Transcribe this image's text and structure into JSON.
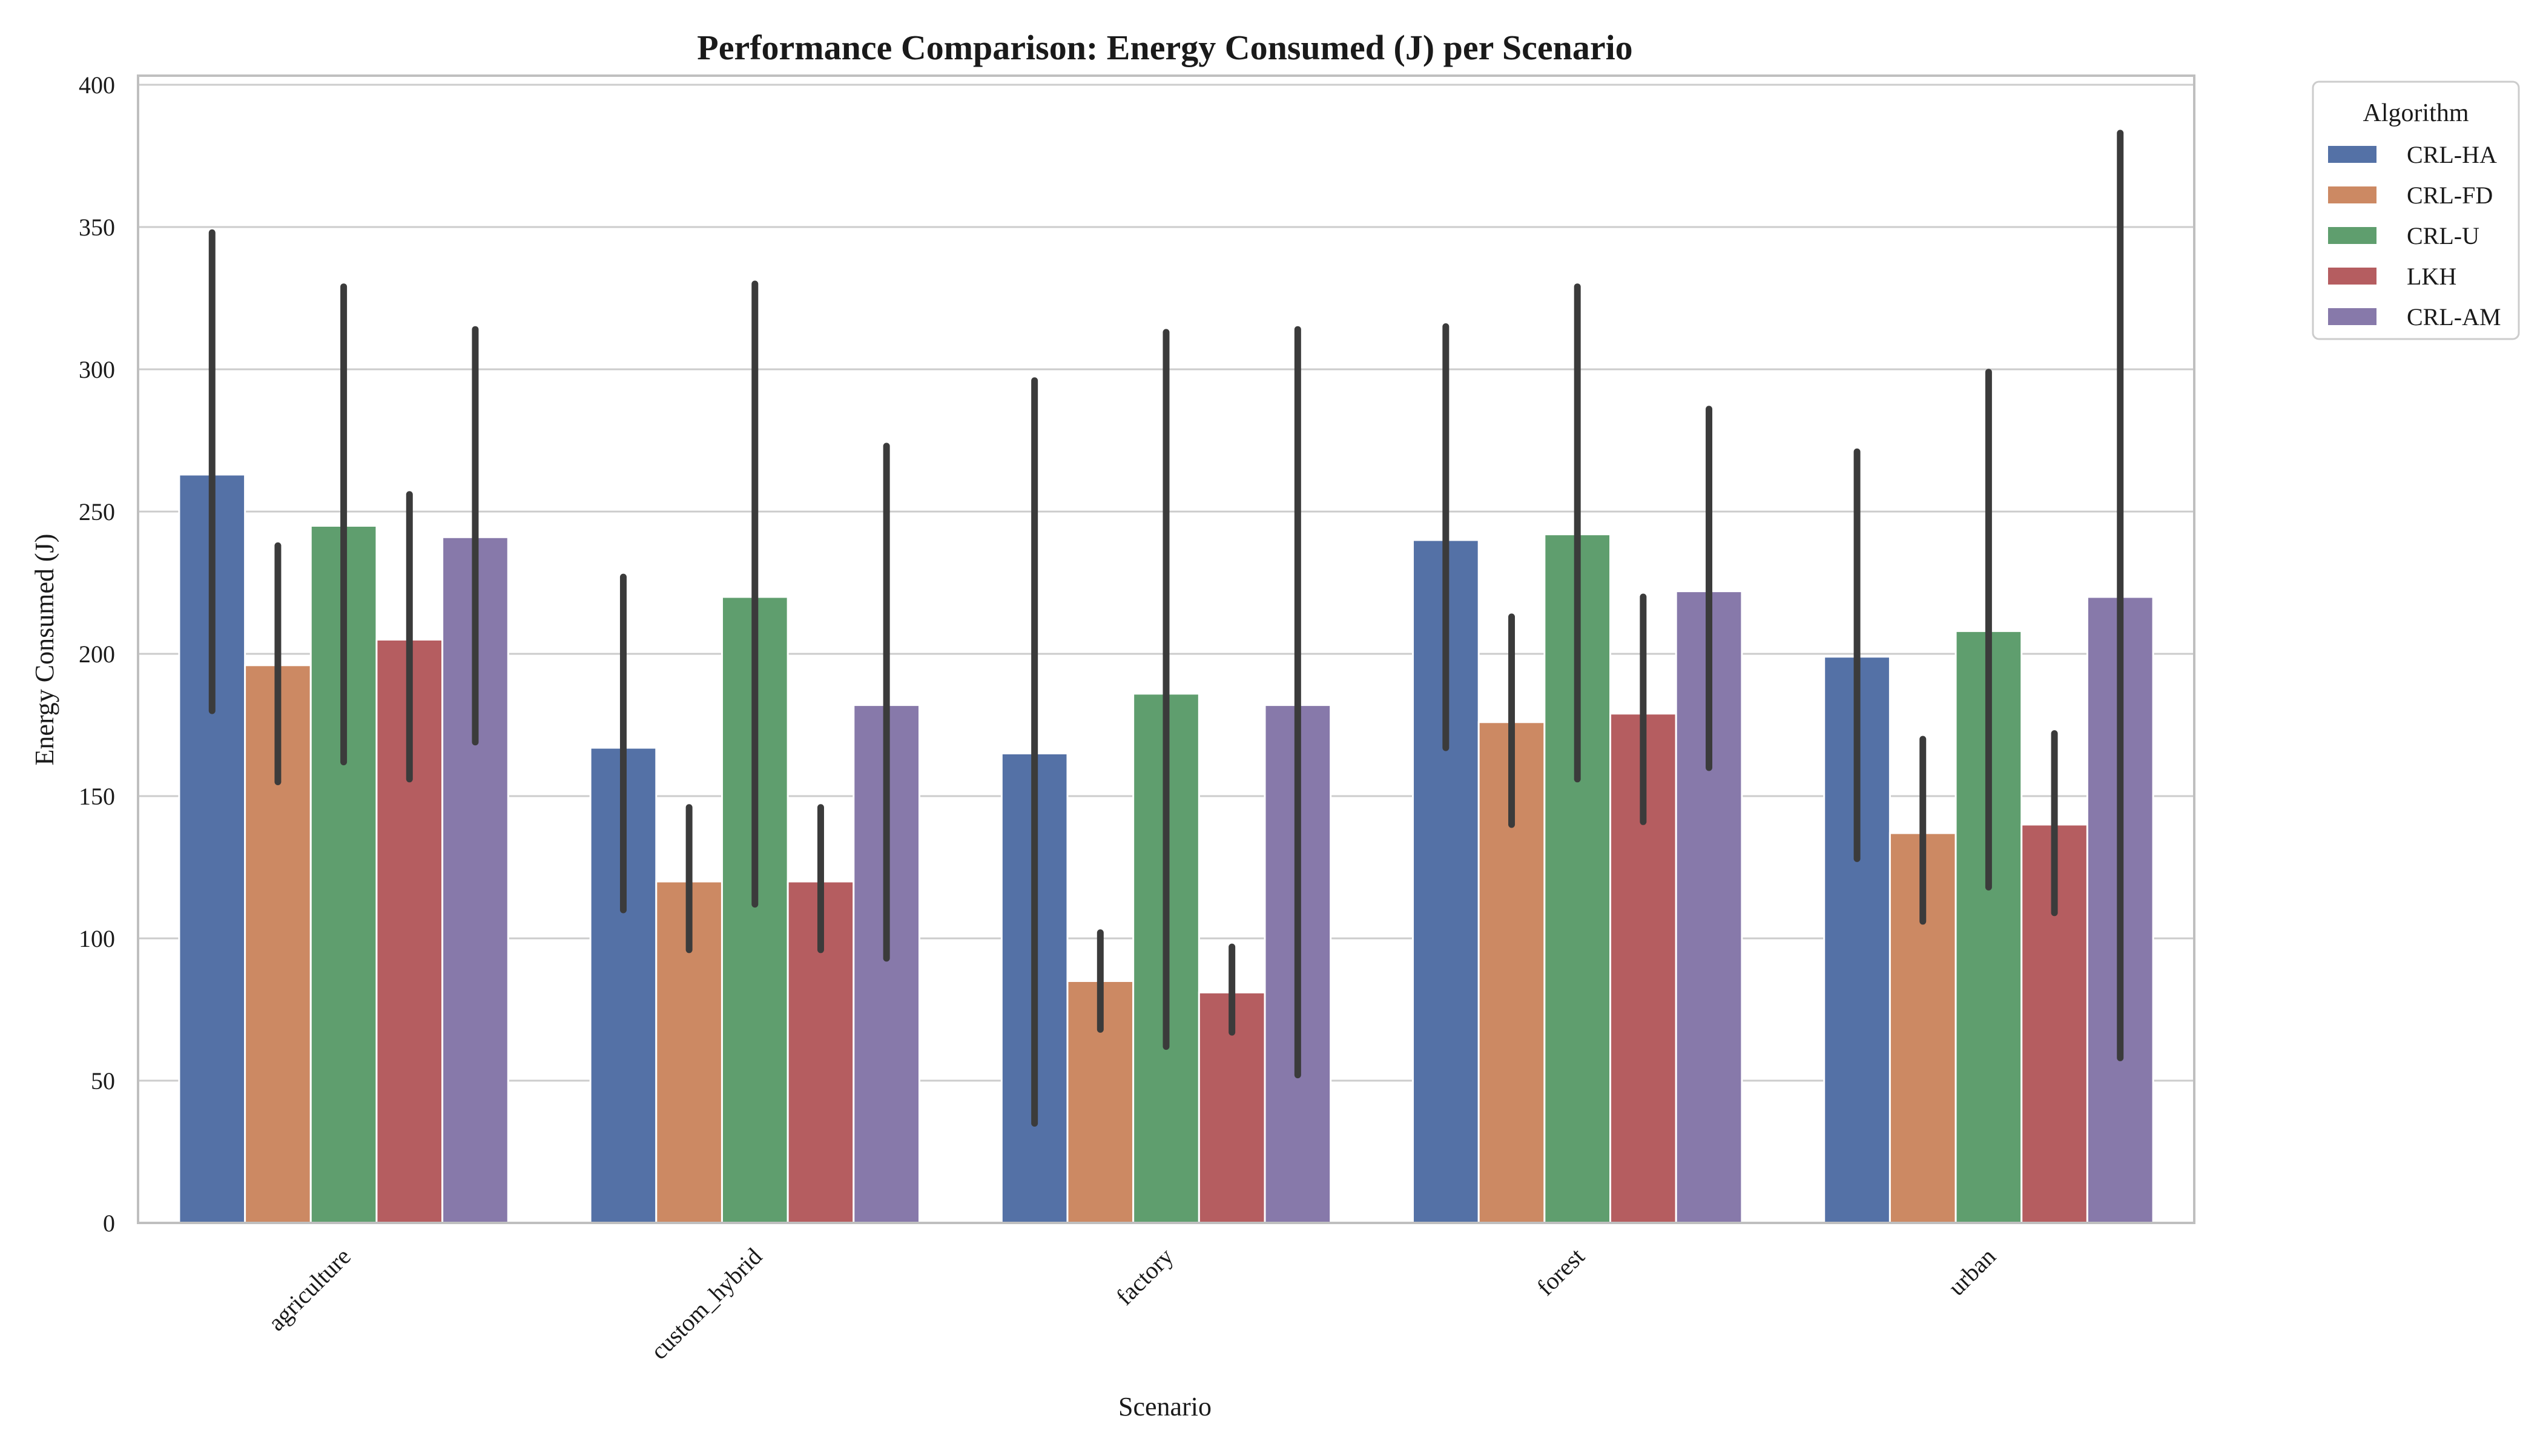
{
  "chart_data": {
    "type": "bar",
    "title": "Performance Comparison: Energy Consumed (J) per Scenario",
    "xlabel": "Scenario",
    "ylabel": "Energy Consumed (J)",
    "ylim": [
      0,
      400
    ],
    "yticks": [
      0,
      50,
      100,
      150,
      200,
      250,
      300,
      350,
      400
    ],
    "grid": true,
    "legend": {
      "title": "Algorithm",
      "placement": "outside-top-right"
    },
    "categories": [
      "agriculture",
      "custom_hybrid",
      "factory",
      "forest",
      "urban"
    ],
    "series": [
      {
        "name": "CRL-HA",
        "color": "#5471a6",
        "values": [
          263,
          167,
          165,
          240,
          199
        ],
        "ci_low": [
          180,
          110,
          35,
          167,
          128
        ],
        "ci_high": [
          348,
          227,
          296,
          315,
          271
        ]
      },
      {
        "name": "CRL-FD",
        "color": "#cc8963",
        "values": [
          196,
          120,
          85,
          176,
          137
        ],
        "ci_low": [
          155,
          96,
          68,
          140,
          106
        ],
        "ci_high": [
          238,
          146,
          102,
          213,
          170
        ]
      },
      {
        "name": "CRL-U",
        "color": "#5f9e6e",
        "values": [
          245,
          220,
          186,
          242,
          208
        ],
        "ci_low": [
          162,
          112,
          62,
          156,
          118
        ],
        "ci_high": [
          329,
          330,
          313,
          329,
          299
        ]
      },
      {
        "name": "LKH",
        "color": "#b55d60",
        "values": [
          205,
          120,
          81,
          179,
          140
        ],
        "ci_low": [
          156,
          96,
          67,
          141,
          109
        ],
        "ci_high": [
          256,
          146,
          97,
          220,
          172
        ]
      },
      {
        "name": "CRL-AM",
        "color": "#8779aa",
        "values": [
          241,
          182,
          182,
          222,
          220
        ],
        "ci_low": [
          169,
          93,
          52,
          160,
          58
        ],
        "ci_high": [
          314,
          273,
          314,
          286,
          383
        ]
      }
    ]
  }
}
